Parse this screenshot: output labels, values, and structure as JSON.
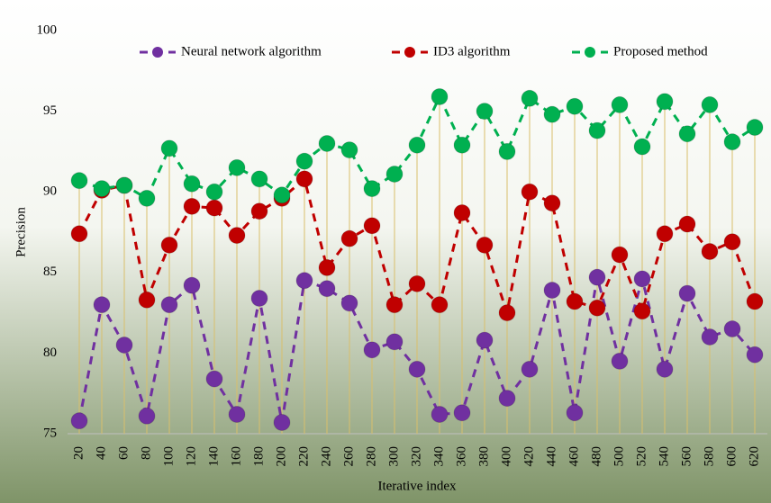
{
  "chart_data": {
    "type": "line",
    "x_label": "Iterative index",
    "y_label": "Precision",
    "categories": [
      "20",
      "40",
      "60",
      "80",
      "100",
      "120",
      "140",
      "160",
      "180",
      "200",
      "220",
      "240",
      "260",
      "280",
      "300",
      "320",
      "340",
      "360",
      "380",
      "400",
      "420",
      "440",
      "460",
      "480",
      "500",
      "520",
      "540",
      "560",
      "580",
      "600",
      "620"
    ],
    "series": [
      {
        "name": "Neural network algorithm",
        "color": "#7030a0",
        "values": [
          75.8,
          83.0,
          80.5,
          76.1,
          83.0,
          84.2,
          78.4,
          76.2,
          83.4,
          75.7,
          84.5,
          84.0,
          83.1,
          80.2,
          80.7,
          79.0,
          76.2,
          76.3,
          80.8,
          77.2,
          79.0,
          83.9,
          76.3,
          84.7,
          79.5,
          84.6,
          79.0,
          83.7,
          81.0,
          81.5,
          79.9
        ]
      },
      {
        "name": "ID3 algorithm",
        "color": "#c00000",
        "values": [
          87.4,
          90.1,
          90.4,
          83.3,
          86.7,
          89.1,
          89.0,
          87.3,
          88.8,
          89.6,
          90.8,
          85.3,
          87.1,
          87.9,
          83.0,
          84.3,
          83.0,
          88.7,
          86.7,
          82.5,
          90.0,
          89.3,
          83.2,
          82.8,
          86.1,
          82.6,
          87.4,
          88.0,
          86.3,
          86.9,
          83.2
        ]
      },
      {
        "name": "Proposed method",
        "color": "#00b050",
        "values": [
          90.7,
          90.2,
          90.4,
          89.6,
          92.7,
          90.5,
          90.0,
          91.5,
          90.8,
          89.8,
          91.9,
          93.0,
          92.6,
          90.2,
          91.1,
          92.9,
          95.9,
          92.9,
          95.0,
          92.5,
          95.8,
          94.8,
          95.3,
          93.8,
          95.4,
          92.8,
          95.6,
          93.6,
          95.4,
          93.1,
          94.0
        ]
      }
    ],
    "ylim": [
      75,
      100
    ],
    "yticks": [
      75,
      80,
      85,
      90,
      95,
      100
    ],
    "legend": "top"
  }
}
